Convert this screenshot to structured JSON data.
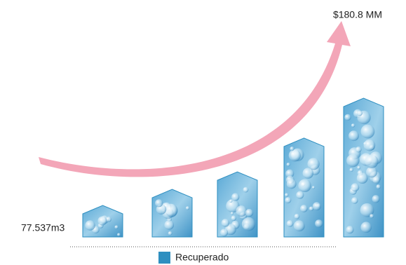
{
  "chart_data": {
    "type": "bar",
    "annotation": "$180.8 MM",
    "categories": [
      null,
      null,
      null,
      null,
      null
    ],
    "series": [
      {
        "name": "Recuperado",
        "color": "#2e8fc0",
        "values": [
          77.537,
          117,
          160,
          243,
          341
        ],
        "value_labels": [
          "77.537m3",
          null,
          null,
          null,
          null
        ]
      }
    ],
    "ylim": [
      0,
      360
    ]
  }
}
